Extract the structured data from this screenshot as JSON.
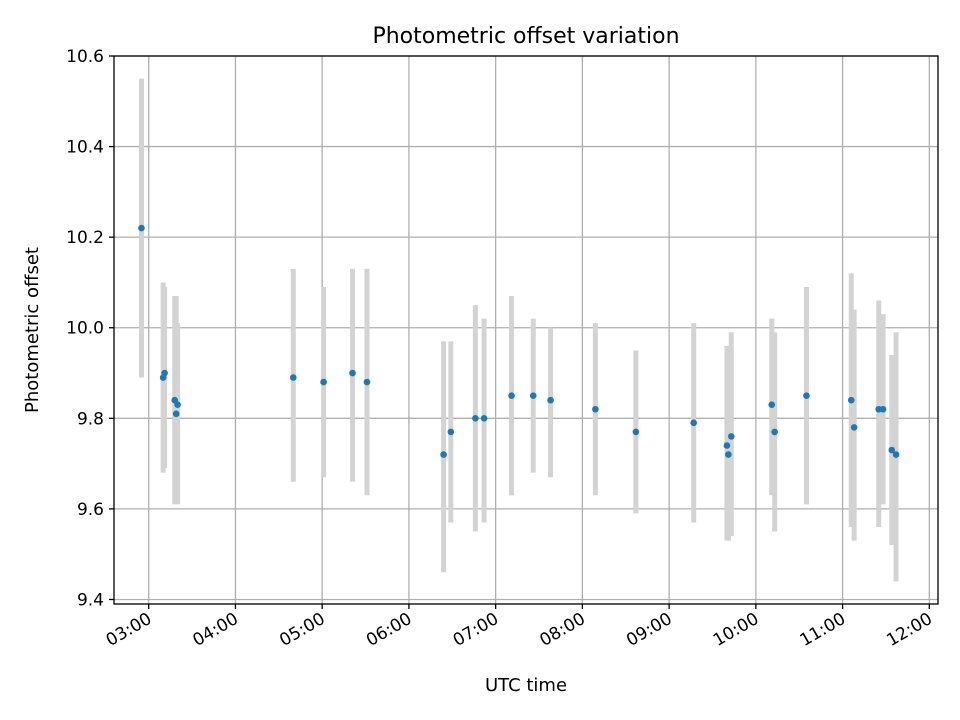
{
  "chart_data": {
    "type": "scatter",
    "title": "Photometric offset variation",
    "xlabel": "UTC time",
    "ylabel": "Photometric offset",
    "x_range": [
      "02:36",
      "12:06"
    ],
    "ylim": [
      9.39,
      10.6
    ],
    "grid": true,
    "x_ticks": [
      "03:00",
      "04:00",
      "05:00",
      "06:00",
      "07:00",
      "08:00",
      "09:00",
      "10:00",
      "11:00",
      "12:00"
    ],
    "y_ticks": [
      "9.4",
      "9.6",
      "9.8",
      "10.0",
      "10.2",
      "10.4",
      "10.6"
    ],
    "marker_color": "#1f77b4",
    "errorbar_color": "#d3d3d3",
    "series": [
      {
        "points": [
          {
            "t": "02:55",
            "y": 10.22,
            "lo": 9.89,
            "hi": 10.55
          },
          {
            "t": "03:10",
            "y": 9.89,
            "lo": 9.68,
            "hi": 10.1
          },
          {
            "t": "03:11",
            "y": 9.9,
            "lo": 9.69,
            "hi": 10.09
          },
          {
            "t": "03:18",
            "y": 9.84,
            "lo": 9.61,
            "hi": 10.07
          },
          {
            "t": "03:19",
            "y": 9.81,
            "lo": 9.62,
            "hi": 10.07
          },
          {
            "t": "03:20",
            "y": 9.83,
            "lo": 9.61,
            "hi": 10.01
          },
          {
            "t": "04:40",
            "y": 9.89,
            "lo": 9.66,
            "hi": 10.13
          },
          {
            "t": "05:01",
            "y": 9.88,
            "lo": 9.67,
            "hi": 10.09
          },
          {
            "t": "05:21",
            "y": 9.9,
            "lo": 9.66,
            "hi": 10.13
          },
          {
            "t": "05:31",
            "y": 9.88,
            "lo": 9.63,
            "hi": 10.13
          },
          {
            "t": "06:24",
            "y": 9.72,
            "lo": 9.46,
            "hi": 9.97
          },
          {
            "t": "06:29",
            "y": 9.77,
            "lo": 9.57,
            "hi": 9.97
          },
          {
            "t": "06:46",
            "y": 9.8,
            "lo": 9.55,
            "hi": 10.05
          },
          {
            "t": "06:52",
            "y": 9.8,
            "lo": 9.57,
            "hi": 10.02
          },
          {
            "t": "07:11",
            "y": 9.85,
            "lo": 9.63,
            "hi": 10.07
          },
          {
            "t": "07:26",
            "y": 9.85,
            "lo": 9.68,
            "hi": 10.02
          },
          {
            "t": "07:38",
            "y": 9.84,
            "lo": 9.67,
            "hi": 10.0
          },
          {
            "t": "08:09",
            "y": 9.82,
            "lo": 9.63,
            "hi": 10.01
          },
          {
            "t": "08:37",
            "y": 9.77,
            "lo": 9.59,
            "hi": 9.95
          },
          {
            "t": "09:17",
            "y": 9.79,
            "lo": 9.57,
            "hi": 10.01
          },
          {
            "t": "09:40",
            "y": 9.74,
            "lo": 9.53,
            "hi": 9.96
          },
          {
            "t": "09:41",
            "y": 9.72,
            "lo": 9.53,
            "hi": 9.96
          },
          {
            "t": "09:43",
            "y": 9.76,
            "lo": 9.54,
            "hi": 9.99
          },
          {
            "t": "10:11",
            "y": 9.83,
            "lo": 9.63,
            "hi": 10.02
          },
          {
            "t": "10:13",
            "y": 9.77,
            "lo": 9.55,
            "hi": 9.99
          },
          {
            "t": "10:35",
            "y": 9.85,
            "lo": 9.61,
            "hi": 10.09
          },
          {
            "t": "11:06",
            "y": 9.84,
            "lo": 9.56,
            "hi": 10.12
          },
          {
            "t": "11:08",
            "y": 9.78,
            "lo": 9.53,
            "hi": 10.04
          },
          {
            "t": "11:25",
            "y": 9.82,
            "lo": 9.56,
            "hi": 10.06
          },
          {
            "t": "11:28",
            "y": 9.82,
            "lo": 9.61,
            "hi": 10.03
          },
          {
            "t": "11:34",
            "y": 9.73,
            "lo": 9.52,
            "hi": 9.94
          },
          {
            "t": "11:37",
            "y": 9.72,
            "lo": 9.44,
            "hi": 9.99
          }
        ]
      }
    ]
  }
}
